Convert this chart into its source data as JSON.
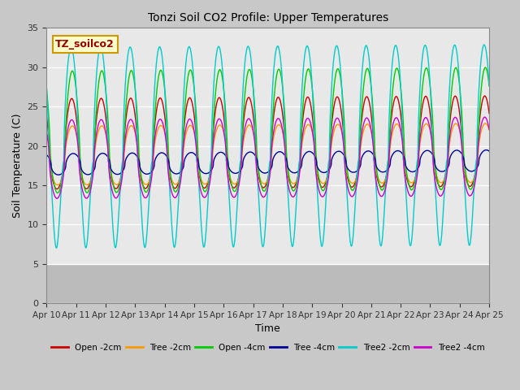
{
  "title": "Tonzi Soil CO2 Profile: Upper Temperatures",
  "xlabel": "Time",
  "ylabel": "Soil Temperature (C)",
  "ylim": [
    0,
    35
  ],
  "yticks": [
    0,
    5,
    10,
    15,
    20,
    25,
    30,
    35
  ],
  "xtick_labels": [
    "Apr 10",
    "Apr 11",
    "Apr 12",
    "Apr 13",
    "Apr 14",
    "Apr 15",
    "Apr 16",
    "Apr 17",
    "Apr 18",
    "Apr 19",
    "Apr 20",
    "Apr 21",
    "Apr 22",
    "Apr 23",
    "Apr 24",
    "Apr 25"
  ],
  "legend_label": "TZ_soilco2",
  "series": [
    {
      "name": "Open -2cm",
      "color": "#cc0000"
    },
    {
      "name": "Tree -2cm",
      "color": "#ff9900"
    },
    {
      "name": "Open -4cm",
      "color": "#00cc00"
    },
    {
      "name": "Tree -4cm",
      "color": "#000099"
    },
    {
      "name": "Tree2 -2cm",
      "color": "#00cccc"
    },
    {
      "name": "Tree2 -4cm",
      "color": "#cc00cc"
    }
  ],
  "fig_bg_color": "#c8c8c8",
  "plot_bg_color": "#e8e8e8",
  "grid_color": "#ffffff",
  "n_days": 15,
  "spd": 288
}
